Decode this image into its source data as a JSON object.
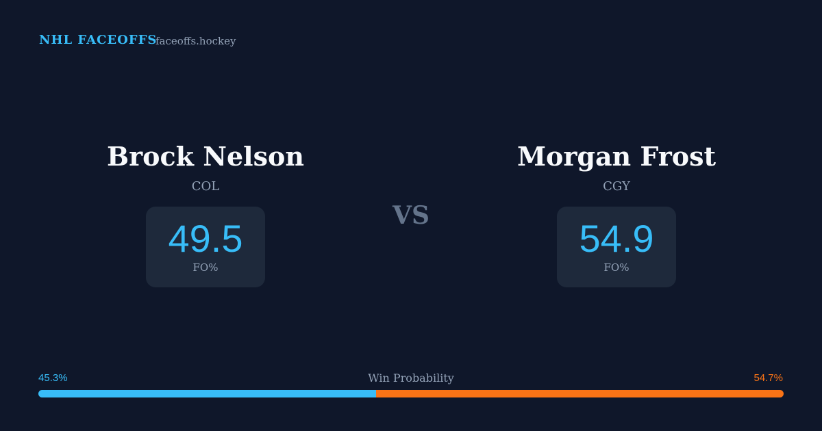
{
  "header": {
    "brand": "NHL FACEOFFS",
    "site": "faceoffs.hockey"
  },
  "players": [
    {
      "name": "Brock Nelson",
      "team": "COL",
      "fo_pct": 49.5,
      "fo_label": "FO%"
    },
    {
      "name": "Morgan Frost",
      "team": "CGY",
      "fo_pct": 54.9,
      "fo_label": "FO%"
    }
  ],
  "vs": "VS",
  "win_probability": {
    "label": "Win Probability",
    "series": [
      {
        "values": [
          45.3
        ],
        "value_labels": [
          "45.3%"
        ],
        "color": "#38bdf8"
      },
      {
        "values": [
          54.7
        ],
        "value_labels": [
          "54.7%"
        ],
        "color": "#f97316"
      }
    ]
  }
}
